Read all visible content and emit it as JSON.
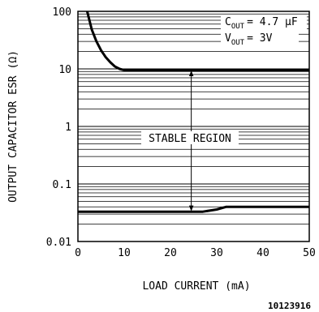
{
  "chart_data": {
    "type": "line",
    "xlabel": "LOAD CURRENT (mA)",
    "ylabel": "OUTPUT CAPACITOR ESR (Ω)",
    "x_ticks": [
      "0",
      "10",
      "20",
      "30",
      "40",
      "50"
    ],
    "y_ticks": [
      "100",
      "10",
      "1",
      "0.1",
      "0.01"
    ],
    "xlim": [
      0,
      50
    ],
    "ylim": [
      0.01,
      100
    ],
    "y_scale": "log",
    "grid": "horizontal",
    "conditions": {
      "cout_label": "C",
      "cout_sub": "OUT",
      "cout_value": "= 4.7 μF",
      "vout_label": "V",
      "vout_sub": "OUT",
      "vout_value": "= 3V"
    },
    "region_label": "STABLE REGION",
    "series": [
      {
        "x": [
          2,
          3,
          4,
          5,
          6,
          7,
          8,
          9,
          10,
          50
        ],
        "values": [
          100,
          48,
          30,
          21,
          16,
          13,
          11,
          10,
          9.5,
          9.5
        ]
      },
      {
        "x": [
          0,
          27,
          30,
          32,
          50
        ],
        "values": [
          0.033,
          0.033,
          0.036,
          0.04,
          0.04
        ]
      }
    ],
    "figure_id": "10123916"
  }
}
